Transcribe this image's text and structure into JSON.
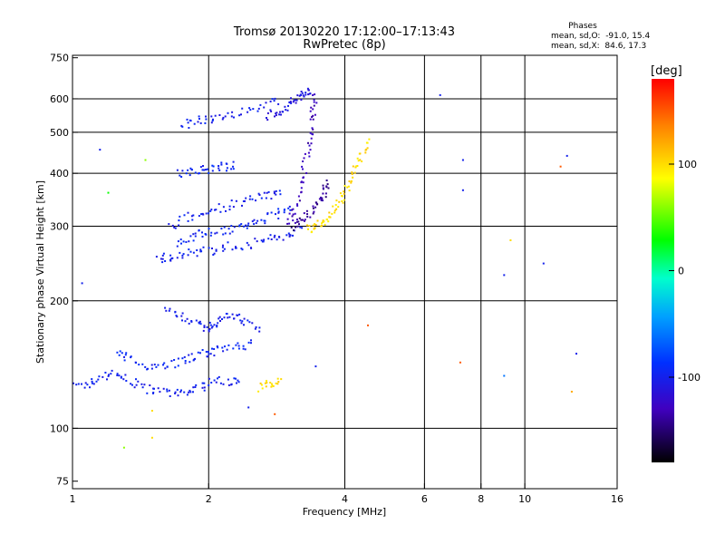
{
  "chart_data": {
    "type": "scatter",
    "title": "Tromsø 20130220 17:12:00–17:13:43",
    "subtitle": "RwPretec (8p)",
    "xlabel": "Frequency [MHz]",
    "ylabel": "Stationary phase Virtual Height [km]",
    "x_scale": "log",
    "y_scale": "log",
    "xlim": [
      1,
      16
    ],
    "ylim": [
      72,
      760
    ],
    "x_ticks": [
      1,
      2,
      4,
      6,
      8,
      10,
      16
    ],
    "x_tick_labels": [
      "1",
      "2",
      "4",
      "6",
      "8",
      "10",
      "16"
    ],
    "x_grid": [
      2,
      4,
      6,
      8,
      10
    ],
    "y_ticks": [
      75,
      100,
      200,
      300,
      400,
      500,
      600,
      750
    ],
    "y_tick_labels": [
      "75",
      "100",
      "200",
      "300",
      "400",
      "500",
      "600",
      "750"
    ],
    "y_grid": [
      100,
      200,
      300,
      400,
      500,
      600
    ],
    "grid": true,
    "phases": {
      "title": "Phases",
      "line_o": "mean, sd,O:  -91.0, 15.4",
      "line_x": "mean, sd,X:  84.6, 17.3"
    },
    "colorbar": {
      "label": "[deg]",
      "range": [
        -180,
        180
      ],
      "ticks": [
        100,
        0,
        -100
      ],
      "tick_labels": [
        "100",
        "0",
        "-100"
      ],
      "colormap": "rainbow"
    },
    "traces": [
      {
        "freq": [
          1.02,
          1.1,
          1.2,
          1.3,
          1.42,
          1.55,
          1.7,
          1.85,
          2.0,
          2.2,
          2.35
        ],
        "height": [
          125,
          128,
          135,
          132,
          125,
          122,
          120,
          123,
          128,
          130,
          128
        ],
        "phase": -100
      },
      {
        "freq": [
          1.25,
          1.35,
          1.5,
          1.65,
          1.8,
          1.95,
          2.1,
          2.3,
          2.5
        ],
        "height": [
          150,
          145,
          140,
          142,
          146,
          150,
          152,
          155,
          160
        ],
        "phase": -95
      },
      {
        "freq": [
          1.6,
          1.75,
          1.9,
          2.0,
          2.1,
          2.25,
          2.4,
          2.6
        ],
        "height": [
          190,
          185,
          175,
          170,
          180,
          185,
          178,
          172
        ],
        "phase": -100
      },
      {
        "freq": [
          1.55,
          1.65,
          1.8,
          2.0,
          2.2,
          2.45,
          2.7,
          2.95,
          3.2
        ],
        "height": [
          250,
          255,
          258,
          262,
          268,
          272,
          278,
          285,
          295
        ],
        "phase": -100
      },
      {
        "freq": [
          1.7,
          1.85,
          2.0,
          2.2,
          2.4,
          2.6,
          2.85,
          3.05
        ],
        "height": [
          275,
          285,
          290,
          295,
          300,
          310,
          320,
          330
        ],
        "phase": -95
      },
      {
        "freq": [
          1.65,
          1.8,
          2.0,
          2.2,
          2.45,
          2.7,
          2.9
        ],
        "height": [
          300,
          315,
          325,
          335,
          345,
          355,
          365
        ],
        "phase": -100
      },
      {
        "freq": [
          1.7,
          1.85,
          2.0,
          2.15,
          2.3
        ],
        "height": [
          400,
          405,
          410,
          415,
          420
        ],
        "phase": -95
      },
      {
        "freq": [
          1.75,
          1.9,
          2.05,
          2.3,
          2.6,
          2.85
        ],
        "height": [
          520,
          530,
          540,
          555,
          575,
          595
        ],
        "phase": -100
      },
      {
        "freq": [
          2.7,
          2.85,
          3.0,
          3.15,
          3.25,
          3.35
        ],
        "height": [
          545,
          560,
          580,
          600,
          615,
          630
        ],
        "phase": -110
      },
      {
        "freq": [
          3.0,
          3.1,
          3.2,
          3.3,
          3.35,
          3.4,
          3.45
        ],
        "height": [
          300,
          330,
          380,
          440,
          500,
          560,
          610
        ],
        "phase": -130
      },
      {
        "freq": [
          3.05,
          3.2,
          3.35,
          3.5,
          3.6,
          3.7
        ],
        "height": [
          300,
          310,
          320,
          340,
          360,
          380
        ],
        "phase": -140
      },
      {
        "freq": [
          3.3,
          3.45,
          3.6,
          3.75,
          3.9,
          4.05,
          4.2,
          4.35,
          4.5
        ],
        "height": [
          295,
          300,
          310,
          325,
          345,
          370,
          400,
          440,
          490
        ],
        "phase": 100
      },
      {
        "freq": [
          2.6,
          2.75,
          2.9
        ],
        "height": [
          125,
          128,
          130
        ],
        "phase": 100
      }
    ],
    "isolated_points": [
      {
        "freq": 1.05,
        "height": 220,
        "phase": -100
      },
      {
        "freq": 1.15,
        "height": 455,
        "phase": -100
      },
      {
        "freq": 1.2,
        "height": 360,
        "phase": 30
      },
      {
        "freq": 1.3,
        "height": 90,
        "phase": 60
      },
      {
        "freq": 1.45,
        "height": 430,
        "phase": 60
      },
      {
        "freq": 1.5,
        "height": 95,
        "phase": 100
      },
      {
        "freq": 1.5,
        "height": 110,
        "phase": 100
      },
      {
        "freq": 2.45,
        "height": 112,
        "phase": -100
      },
      {
        "freq": 2.8,
        "height": 108,
        "phase": 150
      },
      {
        "freq": 3.45,
        "height": 140,
        "phase": -100
      },
      {
        "freq": 4.5,
        "height": 175,
        "phase": 150
      },
      {
        "freq": 6.5,
        "height": 612,
        "phase": -100
      },
      {
        "freq": 7.3,
        "height": 430,
        "phase": -100
      },
      {
        "freq": 7.3,
        "height": 365,
        "phase": -100
      },
      {
        "freq": 7.2,
        "height": 143,
        "phase": 150
      },
      {
        "freq": 9.0,
        "height": 230,
        "phase": -100
      },
      {
        "freq": 9.0,
        "height": 133,
        "phase": -60
      },
      {
        "freq": 9.3,
        "height": 278,
        "phase": 100
      },
      {
        "freq": 11.0,
        "height": 245,
        "phase": -100
      },
      {
        "freq": 12.0,
        "height": 415,
        "phase": 150
      },
      {
        "freq": 12.4,
        "height": 440,
        "phase": -100
      },
      {
        "freq": 12.7,
        "height": 122,
        "phase": 120
      },
      {
        "freq": 13.0,
        "height": 150,
        "phase": -100
      }
    ]
  }
}
